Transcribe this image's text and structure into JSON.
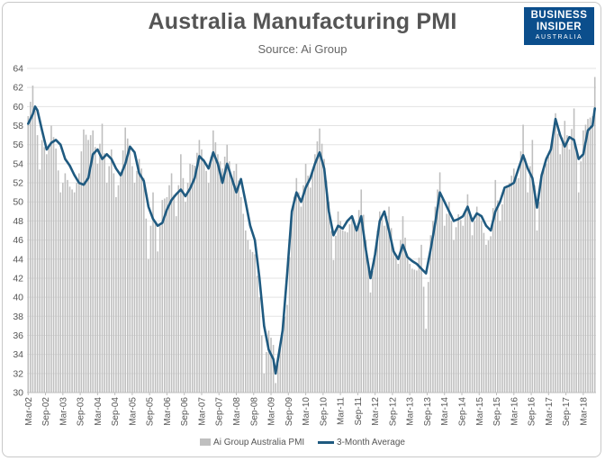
{
  "chart_data": {
    "type": "bar",
    "title": "Australia Manufacturing PMI",
    "subtitle": "Source: Ai Group",
    "ylim": [
      30,
      64
    ],
    "yticks": [
      30,
      32,
      34,
      36,
      38,
      40,
      42,
      44,
      46,
      48,
      50,
      52,
      54,
      56,
      58,
      60,
      62,
      64
    ],
    "xtick_labels": [
      "Mar-02",
      "Sep-02",
      "Mar-03",
      "Sep-03",
      "Mar-04",
      "Sep-04",
      "Mar-05",
      "Sep-05",
      "Mar-06",
      "Sep-06",
      "Mar-07",
      "Sep-07",
      "Mar-08",
      "Sep-08",
      "Mar-09",
      "Sep-09",
      "Mar-10",
      "Sep-10",
      "Mar-11",
      "Sep-11",
      "Mar-12",
      "Sep-12",
      "Mar-13",
      "Sep-13",
      "Mar-14",
      "Sep-14",
      "Mar-15",
      "Sep-15",
      "Mar-16",
      "Sep-16",
      "Mar-17",
      "Sep-17",
      "Mar-18"
    ],
    "grid": true,
    "legend_position": "bottom",
    "series": [
      {
        "name": "Ai Group Australia PMI",
        "type": "bar",
        "color": "#bfbfbf",
        "anchors": [
          [
            0,
            59.0
          ],
          [
            1,
            60.5
          ],
          [
            2,
            62.2
          ],
          [
            4,
            57.0
          ],
          [
            5,
            53.4
          ],
          [
            6,
            56.5
          ],
          [
            8,
            55.0
          ],
          [
            9,
            56.0
          ],
          [
            10,
            58.0
          ],
          [
            12,
            55.6
          ],
          [
            14,
            51.0
          ],
          [
            16,
            53.0
          ],
          [
            18,
            51.6
          ],
          [
            20,
            51.0
          ],
          [
            22,
            53.0
          ],
          [
            24,
            57.6
          ],
          [
            26,
            56.5
          ],
          [
            28,
            57.5
          ],
          [
            30,
            54.0
          ],
          [
            32,
            58.2
          ],
          [
            34,
            52.0
          ],
          [
            36,
            55.5
          ],
          [
            38,
            50.5
          ],
          [
            40,
            53.0
          ],
          [
            42,
            57.8
          ],
          [
            44,
            55.5
          ],
          [
            46,
            52.0
          ],
          [
            48,
            54.5
          ],
          [
            50,
            52.5
          ],
          [
            52,
            44.0
          ],
          [
            54,
            51.0
          ],
          [
            56,
            44.8
          ],
          [
            58,
            50.2
          ],
          [
            60,
            50.5
          ],
          [
            62,
            53.0
          ],
          [
            64,
            48.5
          ],
          [
            66,
            55.0
          ],
          [
            68,
            50.0
          ],
          [
            70,
            54.0
          ],
          [
            72,
            53.8
          ],
          [
            74,
            56.5
          ],
          [
            76,
            54.5
          ],
          [
            78,
            52.0
          ],
          [
            80,
            57.5
          ],
          [
            82,
            55.0
          ],
          [
            84,
            53.5
          ],
          [
            86,
            56.0
          ],
          [
            88,
            52.5
          ],
          [
            90,
            54.0
          ],
          [
            92,
            50.5
          ],
          [
            94,
            47.0
          ],
          [
            96,
            45.0
          ],
          [
            98,
            44.5
          ],
          [
            100,
            40.0
          ],
          [
            102,
            32.0
          ],
          [
            104,
            36.5
          ],
          [
            106,
            35.0
          ],
          [
            107,
            31.0
          ],
          [
            108,
            33.0
          ],
          [
            110,
            36.7
          ],
          [
            112,
            39.2
          ],
          [
            113,
            44.2
          ],
          [
            114,
            48.6
          ],
          [
            116,
            52.5
          ],
          [
            118,
            49.5
          ],
          [
            120,
            54.0
          ],
          [
            122,
            51.5
          ],
          [
            124,
            55.0
          ],
          [
            126,
            57.7
          ],
          [
            128,
            54.5
          ],
          [
            130,
            50.0
          ],
          [
            132,
            43.9
          ],
          [
            134,
            49.0
          ],
          [
            136,
            47.0
          ],
          [
            138,
            46.8
          ],
          [
            140,
            48.5
          ],
          [
            142,
            47.0
          ],
          [
            144,
            51.3
          ],
          [
            146,
            46.0
          ],
          [
            148,
            40.5
          ],
          [
            150,
            45.0
          ],
          [
            152,
            49.0
          ],
          [
            154,
            47.5
          ],
          [
            156,
            49.5
          ],
          [
            158,
            45.0
          ],
          [
            160,
            43.5
          ],
          [
            162,
            48.5
          ],
          [
            164,
            44.0
          ],
          [
            166,
            43.0
          ],
          [
            168,
            42.8
          ],
          [
            170,
            45.5
          ],
          [
            172,
            36.7
          ],
          [
            174,
            46.5
          ],
          [
            176,
            49.5
          ],
          [
            178,
            53.1
          ],
          [
            180,
            47.5
          ],
          [
            182,
            50.0
          ],
          [
            184,
            46.0
          ],
          [
            186,
            48.7
          ],
          [
            188,
            47.5
          ],
          [
            190,
            50.8
          ],
          [
            192,
            46.5
          ],
          [
            194,
            49.5
          ],
          [
            196,
            48.0
          ],
          [
            198,
            45.5
          ],
          [
            200,
            46.4
          ],
          [
            202,
            52.3
          ],
          [
            204,
            48.0
          ],
          [
            206,
            51.5
          ],
          [
            208,
            52.0
          ],
          [
            210,
            53.5
          ],
          [
            212,
            52.5
          ],
          [
            214,
            58.1
          ],
          [
            216,
            51.0
          ],
          [
            218,
            56.5
          ],
          [
            220,
            47.0
          ],
          [
            222,
            53.0
          ],
          [
            224,
            54.0
          ],
          [
            226,
            55.5
          ],
          [
            228,
            59.3
          ],
          [
            230,
            55.0
          ],
          [
            232,
            58.5
          ],
          [
            234,
            55.5
          ],
          [
            236,
            59.8
          ],
          [
            238,
            51.0
          ],
          [
            240,
            57.5
          ],
          [
            242,
            58.7
          ],
          [
            244,
            59.0
          ],
          [
            245,
            63.1
          ]
        ]
      },
      {
        "name": "3-Month Average",
        "type": "line",
        "color": "#1f5a80",
        "anchors": [
          [
            0,
            58.2
          ],
          [
            2,
            59.2
          ],
          [
            3,
            60.0
          ],
          [
            4,
            59.6
          ],
          [
            6,
            57.5
          ],
          [
            8,
            55.5
          ],
          [
            10,
            56.2
          ],
          [
            12,
            56.5
          ],
          [
            14,
            56.0
          ],
          [
            16,
            54.5
          ],
          [
            18,
            53.8
          ],
          [
            20,
            52.8
          ],
          [
            22,
            52.0
          ],
          [
            24,
            51.8
          ],
          [
            26,
            52.5
          ],
          [
            28,
            55.0
          ],
          [
            30,
            55.5
          ],
          [
            32,
            54.5
          ],
          [
            34,
            55.0
          ],
          [
            36,
            54.5
          ],
          [
            38,
            53.5
          ],
          [
            40,
            52.8
          ],
          [
            42,
            54.0
          ],
          [
            44,
            55.8
          ],
          [
            46,
            55.2
          ],
          [
            48,
            53.0
          ],
          [
            50,
            52.2
          ],
          [
            52,
            49.5
          ],
          [
            54,
            48.2
          ],
          [
            56,
            47.5
          ],
          [
            58,
            47.8
          ],
          [
            60,
            49.2
          ],
          [
            62,
            50.2
          ],
          [
            64,
            50.8
          ],
          [
            66,
            51.3
          ],
          [
            68,
            50.6
          ],
          [
            70,
            51.4
          ],
          [
            72,
            52.5
          ],
          [
            74,
            54.8
          ],
          [
            76,
            54.3
          ],
          [
            78,
            53.5
          ],
          [
            80,
            55.2
          ],
          [
            82,
            54.0
          ],
          [
            84,
            52.0
          ],
          [
            86,
            54.0
          ],
          [
            88,
            52.5
          ],
          [
            90,
            51.0
          ],
          [
            92,
            52.4
          ],
          [
            94,
            50.0
          ],
          [
            96,
            47.5
          ],
          [
            98,
            46.0
          ],
          [
            100,
            42.0
          ],
          [
            102,
            37.0
          ],
          [
            104,
            34.5
          ],
          [
            106,
            33.5
          ],
          [
            107,
            32.0
          ],
          [
            108,
            33.5
          ],
          [
            110,
            36.5
          ],
          [
            112,
            42.5
          ],
          [
            114,
            49.0
          ],
          [
            116,
            51.0
          ],
          [
            118,
            50.0
          ],
          [
            120,
            51.5
          ],
          [
            122,
            52.5
          ],
          [
            124,
            54.0
          ],
          [
            126,
            55.2
          ],
          [
            128,
            53.5
          ],
          [
            130,
            49.0
          ],
          [
            132,
            46.5
          ],
          [
            134,
            47.5
          ],
          [
            136,
            47.2
          ],
          [
            138,
            48.0
          ],
          [
            140,
            48.5
          ],
          [
            142,
            47.0
          ],
          [
            144,
            48.5
          ],
          [
            146,
            45.0
          ],
          [
            148,
            42.0
          ],
          [
            150,
            44.5
          ],
          [
            152,
            48.0
          ],
          [
            154,
            49.0
          ],
          [
            156,
            47.0
          ],
          [
            158,
            44.8
          ],
          [
            160,
            44.0
          ],
          [
            162,
            45.5
          ],
          [
            164,
            44.2
          ],
          [
            166,
            43.8
          ],
          [
            168,
            43.5
          ],
          [
            170,
            43.0
          ],
          [
            172,
            42.5
          ],
          [
            174,
            45.0
          ],
          [
            176,
            47.8
          ],
          [
            178,
            51.0
          ],
          [
            180,
            50.0
          ],
          [
            182,
            49.0
          ],
          [
            184,
            48.0
          ],
          [
            186,
            48.2
          ],
          [
            188,
            48.5
          ],
          [
            190,
            49.5
          ],
          [
            192,
            48.0
          ],
          [
            194,
            48.8
          ],
          [
            196,
            48.5
          ],
          [
            198,
            47.5
          ],
          [
            200,
            47.0
          ],
          [
            202,
            49.0
          ],
          [
            204,
            50.0
          ],
          [
            206,
            51.5
          ],
          [
            208,
            51.7
          ],
          [
            210,
            52.0
          ],
          [
            212,
            53.5
          ],
          [
            214,
            54.9
          ],
          [
            216,
            53.5
          ],
          [
            218,
            52.5
          ],
          [
            220,
            49.4
          ],
          [
            222,
            52.8
          ],
          [
            224,
            54.5
          ],
          [
            226,
            55.5
          ],
          [
            228,
            58.7
          ],
          [
            230,
            57.0
          ],
          [
            232,
            55.8
          ],
          [
            234,
            56.8
          ],
          [
            236,
            56.5
          ],
          [
            238,
            54.5
          ],
          [
            240,
            55.0
          ],
          [
            242,
            57.5
          ],
          [
            244,
            58.0
          ],
          [
            245,
            59.8
          ]
        ]
      }
    ]
  },
  "logo": {
    "line1": "BUSINESS",
    "line2": "INSIDER",
    "line3": "AUSTRALIA"
  },
  "legend": {
    "bar_label": "Ai Group Australia PMI",
    "line_label": "3-Month Average"
  }
}
